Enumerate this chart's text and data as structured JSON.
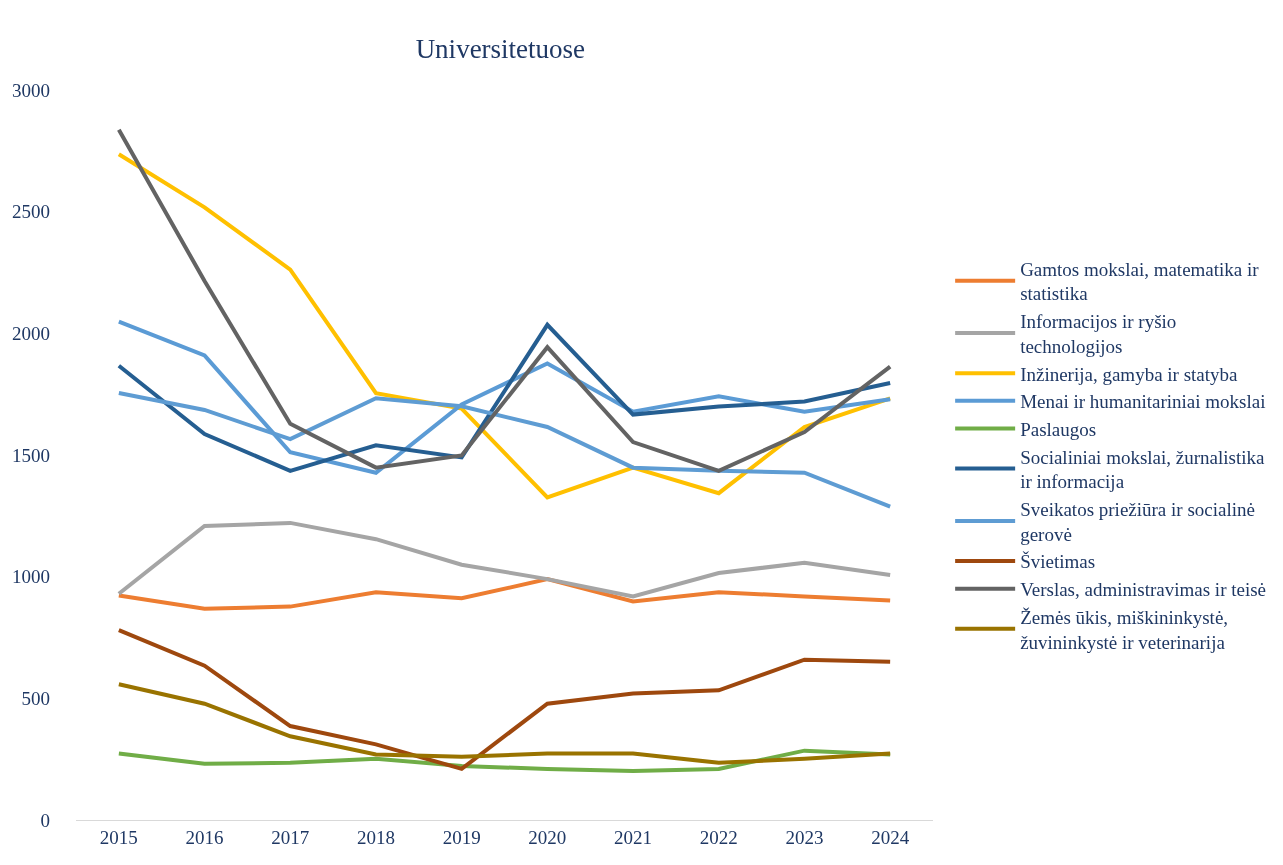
{
  "chart_data": {
    "type": "line",
    "title": "Universitetuose",
    "categories": [
      "2015",
      "2016",
      "2017",
      "2018",
      "2019",
      "2020",
      "2021",
      "2022",
      "2023",
      "2024"
    ],
    "ylim": [
      0,
      3000
    ],
    "yticks": [
      0,
      500,
      1000,
      1500,
      2000,
      2500,
      3000
    ],
    "grid": false,
    "legend": "right",
    "marker": "none",
    "line_style": "solid",
    "series": [
      {
        "name": "Gamtos mokslai, matematika ir statistika",
        "color": "#ed7d31",
        "values": [
          923,
          868,
          877,
          936,
          911,
          990,
          898,
          936,
          919,
          902
        ]
      },
      {
        "name": "Informacijos ir ryšio technologijos",
        "color": "#a5a5a5",
        "values": [
          930,
          1208,
          1221,
          1154,
          1049,
          990,
          919,
          1015,
          1057,
          1007
        ]
      },
      {
        "name": "Inžinerija, gamyba ir statyba",
        "color": "#ffc000",
        "values": [
          2736,
          2518,
          2262,
          1754,
          1691,
          1326,
          1448,
          1343,
          1615,
          1733
        ]
      },
      {
        "name": "Menai ir humanitariniai mokslai",
        "color": "#5b9bd5",
        "values": [
          2048,
          1909,
          1511,
          1427,
          1708,
          1876,
          1678,
          1741,
          1678,
          1729
        ]
      },
      {
        "name": "Paslaugos",
        "color": "#70ad47",
        "values": [
          273,
          231,
          235,
          252,
          222,
          210,
          201,
          210,
          285,
          269
        ]
      },
      {
        "name": "Socialiniai mokslai, žurnalistika ir informacija",
        "color": "#255e91",
        "values": [
          1867,
          1586,
          1435,
          1540,
          1490,
          2035,
          1666,
          1699,
          1720,
          1796
        ]
      },
      {
        "name": "Sveikatos priežiūra ir socialinė gerovė",
        "color": "#5e9cd3",
        "values": [
          1755,
          1685,
          1565,
          1733,
          1700,
          1615,
          1448,
          1435,
          1427,
          1288
        ]
      },
      {
        "name": "Švietimas",
        "color": "#9e480e",
        "values": [
          780,
          634,
          386,
          311,
          210,
          478,
          520,
          533,
          659,
          650
        ]
      },
      {
        "name": "Verslas, administravimas ir teisė",
        "color": "#636363",
        "values": [
          2837,
          2215,
          1628,
          1448,
          1498,
          1943,
          1553,
          1435,
          1594,
          1863
        ]
      },
      {
        "name": "Žemės ūkis, miškininkystė, žuvininkystė ir veterinarija",
        "color": "#997300",
        "values": [
          558,
          478,
          344,
          269,
          260,
          273,
          273,
          235,
          252,
          273
        ]
      }
    ]
  }
}
